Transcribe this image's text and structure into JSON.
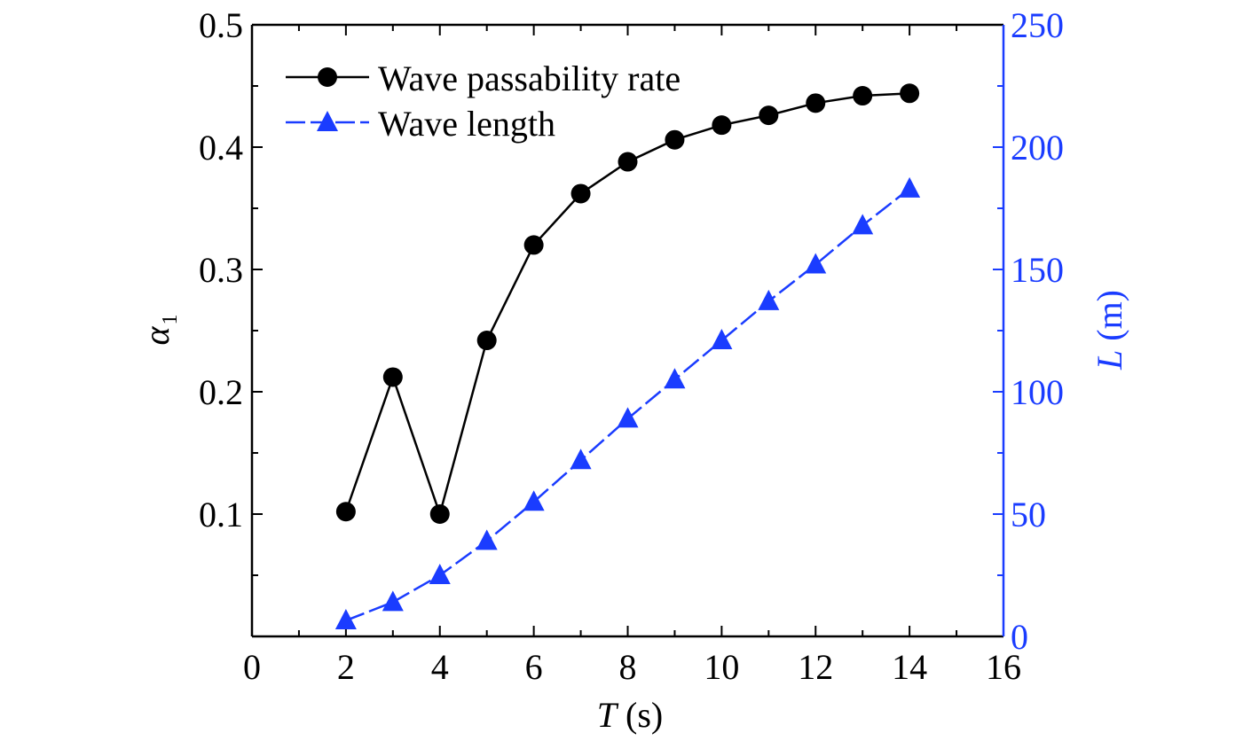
{
  "chart_data": {
    "type": "line",
    "title": "",
    "x": [
      2,
      3,
      4,
      5,
      6,
      7,
      8,
      9,
      10,
      11,
      12,
      13,
      14
    ],
    "xlim": [
      0,
      16
    ],
    "x_ticks": [
      0,
      2,
      4,
      6,
      8,
      10,
      12,
      14,
      16
    ],
    "xlabel": {
      "symbol": "T",
      "unit": " (s)"
    },
    "ylabel_left": {
      "symbol": "α",
      "subscript": "1"
    },
    "ylim_left": [
      0,
      0.5
    ],
    "y_ticks_left": [
      "0.1",
      "0.2",
      "0.3",
      "0.4",
      "0.5"
    ],
    "ylabel_right": {
      "symbol": "L",
      "unit": " (m)"
    },
    "ylim_right": [
      0,
      250
    ],
    "y_ticks_right": [
      "0",
      "50",
      "100",
      "150",
      "200",
      "250"
    ],
    "series": [
      {
        "name": "Wave passability rate",
        "axis": "left",
        "marker": "circle",
        "color": "#000000",
        "values": [
          0.102,
          0.212,
          0.1,
          0.242,
          0.32,
          0.362,
          0.388,
          0.406,
          0.418,
          0.426,
          0.436,
          0.442,
          0.444
        ]
      },
      {
        "name": "Wave length",
        "axis": "right",
        "marker": "triangle",
        "color": "#1a3cff",
        "values": [
          6.5,
          14,
          25,
          39,
          55,
          72,
          89,
          105,
          121,
          137,
          152,
          168,
          183
        ]
      }
    ],
    "legend_position": "top-left",
    "grid": false,
    "right_axis_color": "#1a3cff"
  }
}
